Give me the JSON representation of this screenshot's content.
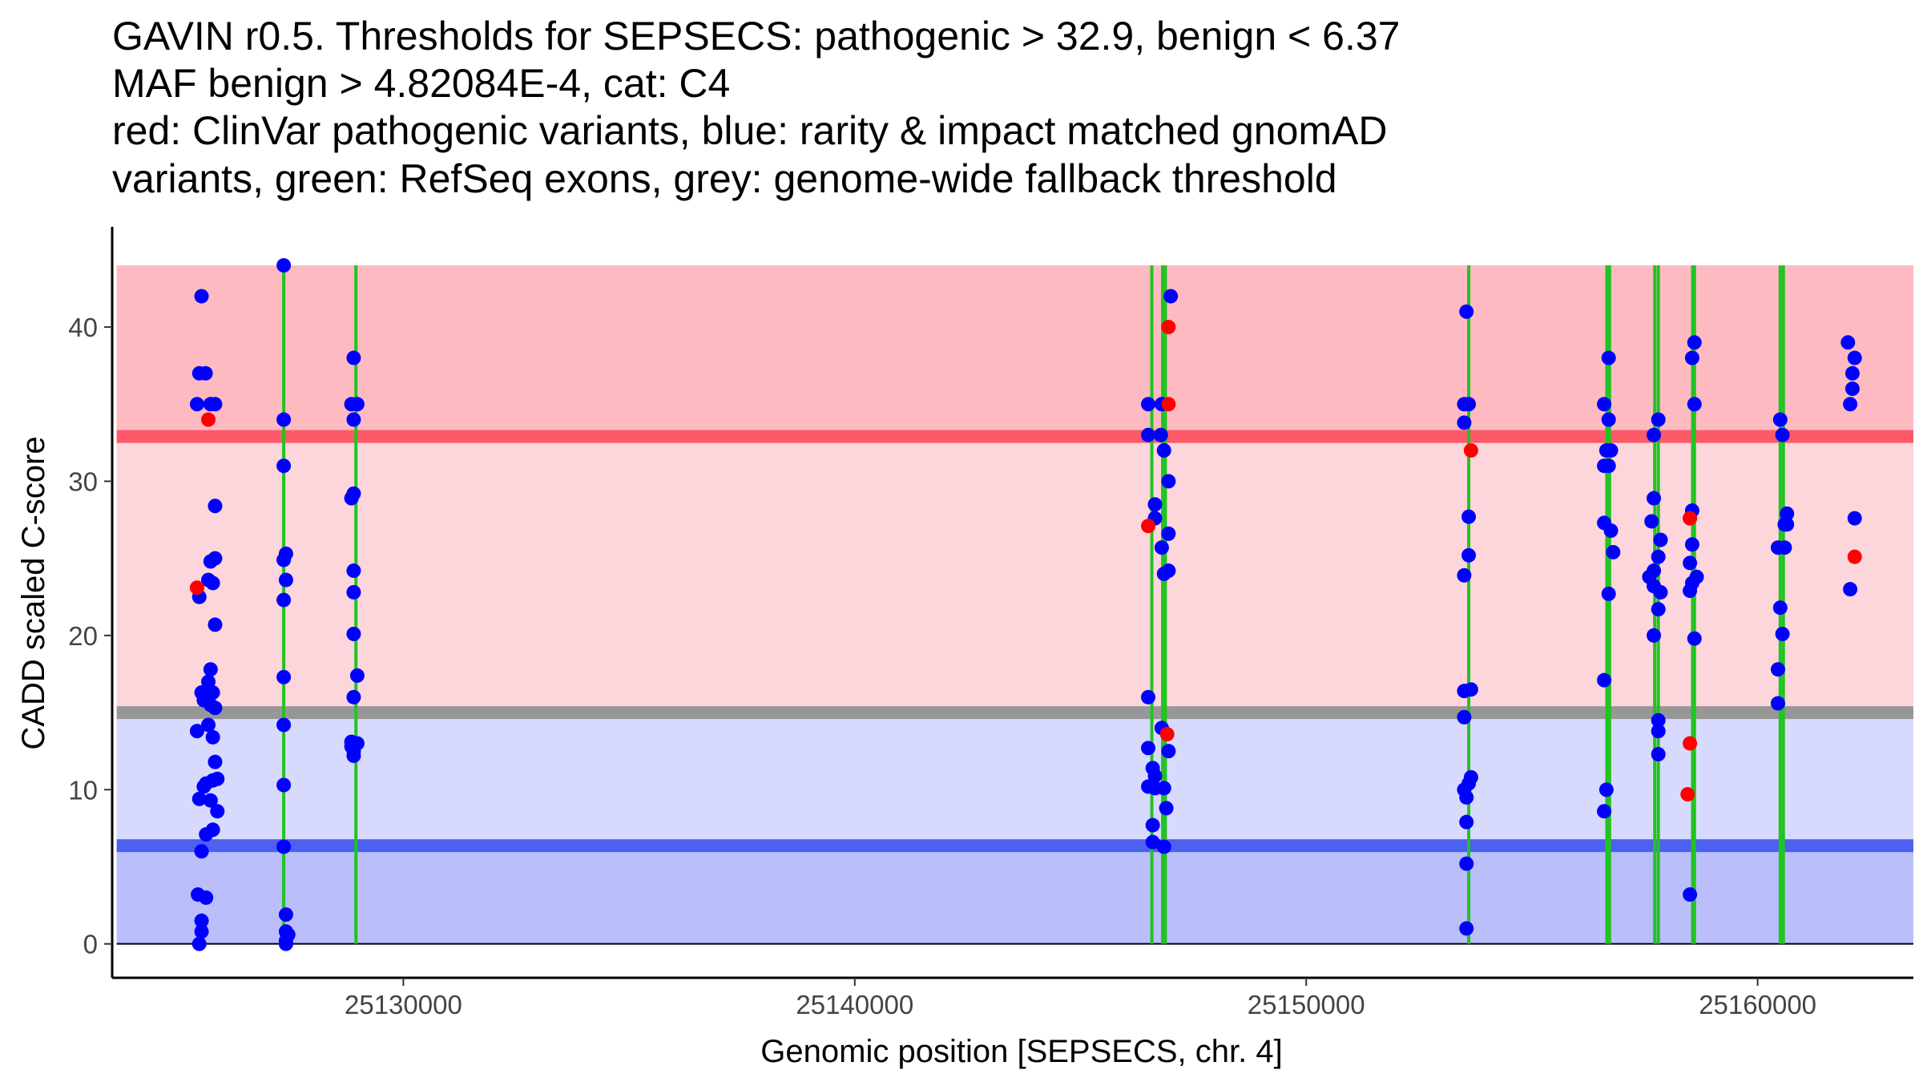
{
  "chart_data": {
    "type": "scatter",
    "title_lines": [
      "GAVIN r0.5. Thresholds for SEPSECS: pathogenic > 32.9, benign < 6.37",
      "MAF benign > 4.82084E-4, cat: C4",
      "red: ClinVar pathogenic variants, blue: rarity & impact matched gnomAD",
      "variants, green: RefSeq exons, grey: genome-wide fallback threshold"
    ],
    "xlabel": "Genomic position [SEPSECS, chr. 4]",
    "ylabel": "CADD scaled C-score",
    "xlim": [
      25123550,
      25163450
    ],
    "ylim": [
      -2.2,
      46.5
    ],
    "x_ticks": [
      25130000,
      25140000,
      25150000,
      25160000
    ],
    "x_tick_labels": [
      "25130000",
      "25140000",
      "25150000",
      "25160000"
    ],
    "y_ticks": [
      0,
      10,
      20,
      30,
      40
    ],
    "y_tick_labels": [
      "0",
      "10",
      "20",
      "30",
      "40"
    ],
    "region_x_range": [
      25123650,
      25163450
    ],
    "bands": [
      {
        "name": "pathogenic-zone",
        "from": 32.9,
        "to": 44,
        "color": "#fdbbc1"
      },
      {
        "name": "above-fallback-zone",
        "from": 15,
        "to": 32.9,
        "color": "#fdd6db"
      },
      {
        "name": "below-fallback-zone",
        "from": 6.37,
        "to": 15,
        "color": "#d8dafd"
      },
      {
        "name": "benign-zone",
        "from": 0,
        "to": 6.37,
        "color": "#babffc"
      }
    ],
    "thresholds": [
      {
        "name": "pathogenic-threshold",
        "value": 32.9,
        "color": "#fc5a69"
      },
      {
        "name": "fallback-threshold",
        "value": 15,
        "color": "#979797"
      },
      {
        "name": "benign-threshold",
        "value": 6.37,
        "color": "#4c61f0"
      }
    ],
    "exons": [
      {
        "x": 25127350,
        "color": "#22c322"
      },
      {
        "x": 25128950,
        "color": "#22c322"
      },
      {
        "x": 25146580,
        "color": "#22c322"
      },
      {
        "x": 25146820,
        "color": "#22c322"
      },
      {
        "x": 25146880,
        "color": "#22c322"
      },
      {
        "x": 25153600,
        "color": "#22c322"
      },
      {
        "x": 25156660,
        "color": "#22c322"
      },
      {
        "x": 25156720,
        "color": "#22c322"
      },
      {
        "x": 25157720,
        "color": "#22c322"
      },
      {
        "x": 25157800,
        "color": "#22c322"
      },
      {
        "x": 25158560,
        "color": "#22c322"
      },
      {
        "x": 25158600,
        "color": "#22c322"
      },
      {
        "x": 25160500,
        "color": "#22c322"
      },
      {
        "x": 25160570,
        "color": "#22c322"
      }
    ],
    "series": [
      {
        "name": "gnomAD",
        "color": "#0000ff",
        "points": [
          [
            25125530,
            42
          ],
          [
            25125480,
            37
          ],
          [
            25125620,
            37
          ],
          [
            25125430,
            35
          ],
          [
            25125730,
            35
          ],
          [
            25125830,
            35
          ],
          [
            25125830,
            28.4
          ],
          [
            25125830,
            25
          ],
          [
            25125730,
            24.8
          ],
          [
            25125680,
            23.6
          ],
          [
            25125780,
            23.4
          ],
          [
            25125480,
            22.5
          ],
          [
            25125830,
            20.7
          ],
          [
            25125730,
            17.8
          ],
          [
            25125680,
            17
          ],
          [
            25125530,
            16.3
          ],
          [
            25125780,
            16.3
          ],
          [
            25125580,
            15.8
          ],
          [
            25125730,
            15.5
          ],
          [
            25125830,
            15.3
          ],
          [
            25125680,
            14.2
          ],
          [
            25125430,
            13.8
          ],
          [
            25125780,
            13.4
          ],
          [
            25125830,
            11.8
          ],
          [
            25125880,
            10.7
          ],
          [
            25125780,
            10.6
          ],
          [
            25125630,
            10.4
          ],
          [
            25125580,
            10.2
          ],
          [
            25125480,
            9.4
          ],
          [
            25125730,
            9.3
          ],
          [
            25125880,
            8.6
          ],
          [
            25125780,
            7.4
          ],
          [
            25125630,
            7.1
          ],
          [
            25125530,
            6
          ],
          [
            25125450,
            3.2
          ],
          [
            25125630,
            3
          ],
          [
            25125530,
            1.5
          ],
          [
            25125530,
            0.8
          ],
          [
            25125480,
            0
          ],
          [
            25127350,
            44
          ],
          [
            25127350,
            34
          ],
          [
            25127350,
            31
          ],
          [
            25127400,
            25.3
          ],
          [
            25127350,
            24.9
          ],
          [
            25127400,
            23.6
          ],
          [
            25127350,
            22.3
          ],
          [
            25127350,
            17.3
          ],
          [
            25127350,
            14.2
          ],
          [
            25127350,
            10.3
          ],
          [
            25127350,
            6.3
          ],
          [
            25127400,
            1.9
          ],
          [
            25127400,
            0.8
          ],
          [
            25127450,
            0.6
          ],
          [
            25127400,
            0.2
          ],
          [
            25127400,
            0
          ],
          [
            25128900,
            38
          ],
          [
            25128850,
            35
          ],
          [
            25128980,
            35
          ],
          [
            25128900,
            34
          ],
          [
            25128900,
            29.2
          ],
          [
            25128850,
            28.9
          ],
          [
            25128900,
            24.2
          ],
          [
            25128900,
            22.8
          ],
          [
            25128900,
            20.1
          ],
          [
            25128980,
            17.4
          ],
          [
            25128900,
            16
          ],
          [
            25128850,
            13.1
          ],
          [
            25128980,
            13
          ],
          [
            25128850,
            12.8
          ],
          [
            25128900,
            12.5
          ],
          [
            25128900,
            12.2
          ],
          [
            25146500,
            35
          ],
          [
            25146800,
            35
          ],
          [
            25146500,
            33
          ],
          [
            25146780,
            33
          ],
          [
            25146850,
            32
          ],
          [
            25146950,
            30
          ],
          [
            25146650,
            28.5
          ],
          [
            25146650,
            27.6
          ],
          [
            25146950,
            26.6
          ],
          [
            25146800,
            25.7
          ],
          [
            25146950,
            24.2
          ],
          [
            25146850,
            24
          ],
          [
            25146500,
            16
          ],
          [
            25146800,
            14
          ],
          [
            25146500,
            12.7
          ],
          [
            25146950,
            12.5
          ],
          [
            25146600,
            11.4
          ],
          [
            25146650,
            10.9
          ],
          [
            25146500,
            10.2
          ],
          [
            25146850,
            10.1
          ],
          [
            25146650,
            10.1
          ],
          [
            25146900,
            8.8
          ],
          [
            25146600,
            7.7
          ],
          [
            25146600,
            6.6
          ],
          [
            25146850,
            6.3
          ],
          [
            25147000,
            42
          ],
          [
            25153550,
            41
          ],
          [
            25153500,
            35
          ],
          [
            25153600,
            35
          ],
          [
            25153500,
            33.8
          ],
          [
            25153600,
            27.7
          ],
          [
            25153600,
            25.2
          ],
          [
            25153500,
            23.9
          ],
          [
            25153500,
            16.4
          ],
          [
            25153650,
            16.5
          ],
          [
            25153500,
            14.7
          ],
          [
            25153650,
            10.8
          ],
          [
            25153600,
            10.4
          ],
          [
            25153500,
            10
          ],
          [
            25153550,
            9.5
          ],
          [
            25153550,
            7.9
          ],
          [
            25153550,
            5.2
          ],
          [
            25153550,
            1
          ],
          [
            25156700,
            38
          ],
          [
            25156600,
            35
          ],
          [
            25156700,
            34
          ],
          [
            25156650,
            32
          ],
          [
            25156750,
            32
          ],
          [
            25156600,
            31
          ],
          [
            25156700,
            31
          ],
          [
            25156600,
            27.3
          ],
          [
            25156750,
            26.8
          ],
          [
            25156800,
            25.4
          ],
          [
            25156700,
            22.7
          ],
          [
            25156600,
            17.1
          ],
          [
            25156650,
            10
          ],
          [
            25156600,
            8.6
          ],
          [
            25157800,
            34
          ],
          [
            25157700,
            33
          ],
          [
            25157700,
            28.9
          ],
          [
            25157650,
            27.4
          ],
          [
            25157850,
            26.2
          ],
          [
            25157800,
            25.1
          ],
          [
            25157700,
            24.2
          ],
          [
            25157600,
            23.8
          ],
          [
            25157700,
            23.2
          ],
          [
            25157850,
            22.8
          ],
          [
            25157800,
            21.7
          ],
          [
            25157700,
            20
          ],
          [
            25157800,
            14.5
          ],
          [
            25157800,
            13.8
          ],
          [
            25157800,
            12.3
          ],
          [
            25158600,
            39
          ],
          [
            25158550,
            38
          ],
          [
            25158600,
            35
          ],
          [
            25158550,
            28.1
          ],
          [
            25158500,
            27.6
          ],
          [
            25158550,
            25.9
          ],
          [
            25158500,
            24.7
          ],
          [
            25158650,
            23.8
          ],
          [
            25158550,
            23.4
          ],
          [
            25158500,
            22.9
          ],
          [
            25158600,
            19.8
          ],
          [
            25158500,
            3.2
          ],
          [
            25160500,
            34
          ],
          [
            25160550,
            33
          ],
          [
            25160650,
            27.9
          ],
          [
            25160600,
            27.2
          ],
          [
            25160650,
            27.2
          ],
          [
            25160450,
            25.7
          ],
          [
            25160600,
            25.7
          ],
          [
            25160500,
            21.8
          ],
          [
            25160550,
            20.1
          ],
          [
            25160450,
            17.8
          ],
          [
            25160450,
            15.6
          ],
          [
            25162000,
            39
          ],
          [
            25162150,
            38
          ],
          [
            25162100,
            37
          ],
          [
            25162100,
            36
          ],
          [
            25162050,
            35
          ],
          [
            25162150,
            27.6
          ],
          [
            25162050,
            23
          ]
        ]
      },
      {
        "name": "ClinVar pathogenic",
        "color": "#ff0000",
        "points": [
          [
            25125680,
            34
          ],
          [
            25125430,
            23.1
          ],
          [
            25146950,
            40
          ],
          [
            25146950,
            35
          ],
          [
            25146500,
            27.1
          ],
          [
            25146920,
            13.6
          ],
          [
            25153650,
            32
          ],
          [
            25158500,
            27.6
          ],
          [
            25158500,
            13
          ],
          [
            25158450,
            9.7
          ],
          [
            25162150,
            25.1
          ]
        ]
      }
    ]
  }
}
